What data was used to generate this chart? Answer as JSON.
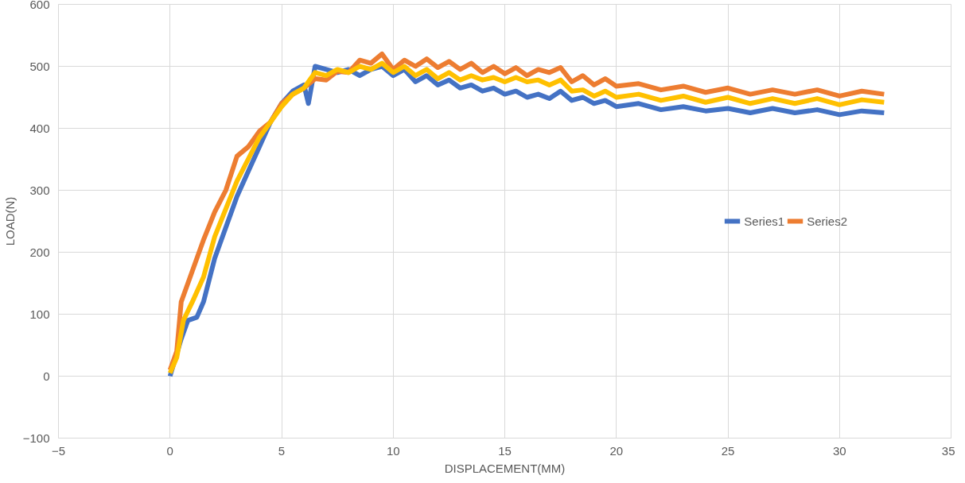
{
  "chart_data": {
    "type": "line",
    "xlabel": "DISPLACEMENT(MM)",
    "ylabel": "LOAD(N)",
    "xlim": [
      -5,
      35
    ],
    "xticks": [
      -5,
      0,
      5,
      10,
      15,
      20,
      25,
      30,
      35
    ],
    "ylim": [
      -100,
      600
    ],
    "yticks": [
      -100,
      0,
      100,
      200,
      300,
      400,
      500,
      600
    ],
    "grid": true,
    "legend": "right",
    "marker": "none",
    "line_style": "solid",
    "series": [
      {
        "name": "Series1",
        "color": "#4472c4",
        "x": [
          0,
          0.5,
          0.8,
          1.2,
          1.5,
          2,
          2.5,
          3,
          3.5,
          4,
          4.5,
          5,
          5.5,
          6,
          6.2,
          6.5,
          7,
          7.5,
          8,
          8.5,
          9,
          9.5,
          10,
          10.5,
          11,
          11.5,
          12,
          12.5,
          13,
          13.5,
          14,
          14.5,
          15,
          15.5,
          16,
          16.5,
          17,
          17.5,
          18,
          18.5,
          19,
          19.5,
          20,
          21,
          22,
          23,
          24,
          25,
          26,
          27,
          28,
          29,
          30,
          31,
          32
        ],
        "values": [
          0,
          60,
          90,
          95,
          120,
          190,
          240,
          290,
          330,
          370,
          410,
          440,
          460,
          470,
          440,
          500,
          495,
          490,
          495,
          485,
          495,
          500,
          485,
          495,
          475,
          485,
          470,
          478,
          465,
          470,
          460,
          465,
          455,
          460,
          450,
          455,
          448,
          460,
          445,
          450,
          440,
          445,
          435,
          440,
          430,
          435,
          428,
          432,
          425,
          432,
          425,
          430,
          422,
          428,
          425
        ]
      },
      {
        "name": "Series2",
        "color": "#ed7d31",
        "x": [
          0,
          0.3,
          0.5,
          1,
          1.5,
          2,
          2.5,
          3,
          3.5,
          4,
          4.5,
          5,
          5.5,
          6,
          6.5,
          7,
          7.5,
          8,
          8.5,
          9,
          9.5,
          10,
          10.5,
          11,
          11.5,
          12,
          12.5,
          13,
          13.5,
          14,
          14.5,
          15,
          15.5,
          16,
          16.5,
          17,
          17.5,
          18,
          18.5,
          19,
          19.5,
          20,
          21,
          22,
          23,
          24,
          25,
          26,
          27,
          28,
          29,
          30,
          31,
          32
        ],
        "values": [
          10,
          40,
          120,
          170,
          220,
          265,
          300,
          355,
          370,
          395,
          410,
          440,
          455,
          465,
          480,
          478,
          492,
          490,
          510,
          505,
          520,
          495,
          510,
          500,
          512,
          498,
          508,
          495,
          505,
          490,
          500,
          488,
          498,
          485,
          495,
          490,
          498,
          475,
          485,
          470,
          480,
          468,
          472,
          462,
          468,
          458,
          465,
          455,
          462,
          455,
          462,
          452,
          460,
          455
        ]
      },
      {
        "color": "#ffc000",
        "x": [
          0,
          0.3,
          0.6,
          1,
          1.5,
          2,
          2.5,
          3,
          3.5,
          4,
          4.5,
          5,
          5.5,
          6,
          6.5,
          7,
          7.5,
          8,
          8.5,
          9,
          9.5,
          10,
          10.5,
          11,
          11.5,
          12,
          12.5,
          13,
          13.5,
          14,
          14.5,
          15,
          15.5,
          16,
          16.5,
          17,
          17.5,
          18,
          18.5,
          19,
          19.5,
          20,
          21,
          22,
          23,
          24,
          25,
          26,
          27,
          28,
          29,
          30,
          31,
          32
        ],
        "values": [
          5,
          30,
          90,
          120,
          160,
          225,
          270,
          315,
          350,
          385,
          410,
          435,
          455,
          465,
          490,
          485,
          495,
          490,
          500,
          495,
          505,
          490,
          500,
          485,
          495,
          480,
          490,
          478,
          485,
          478,
          482,
          475,
          482,
          475,
          478,
          470,
          478,
          460,
          462,
          452,
          460,
          450,
          455,
          445,
          452,
          442,
          450,
          440,
          448,
          440,
          448,
          438,
          446,
          442
        ]
      }
    ]
  }
}
